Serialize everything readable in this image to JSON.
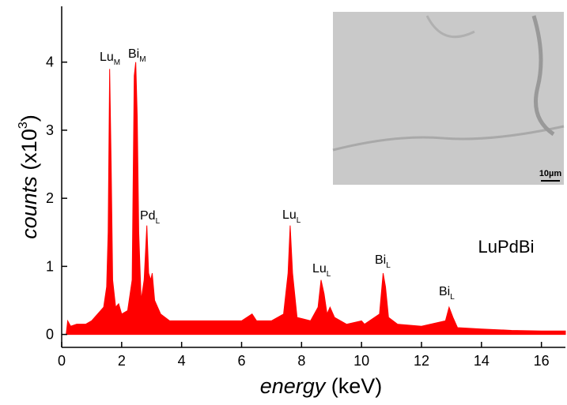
{
  "chart_data": {
    "type": "area",
    "x": [
      0.15,
      0.2,
      0.3,
      0.5,
      0.8,
      1.0,
      1.2,
      1.4,
      1.5,
      1.55,
      1.6,
      1.65,
      1.7,
      1.8,
      1.9,
      2.0,
      2.2,
      2.35,
      2.42,
      2.47,
      2.52,
      2.57,
      2.65,
      2.75,
      2.84,
      2.9,
      2.97,
      3.02,
      3.1,
      3.3,
      3.6,
      4,
      5,
      6,
      6.35,
      6.5,
      7,
      7.4,
      7.55,
      7.62,
      7.7,
      7.85,
      8.3,
      8.55,
      8.65,
      8.75,
      8.85,
      8.95,
      9.1,
      9.5,
      10,
      10.1,
      10.6,
      10.72,
      10.8,
      10.9,
      11.2,
      12,
      12.8,
      12.92,
      13.05,
      13.2,
      14,
      15,
      16,
      16.8
    ],
    "series": [
      {
        "color": "#ff0000",
        "values": [
          0,
          0.2,
          0.12,
          0.15,
          0.15,
          0.2,
          0.3,
          0.4,
          0.7,
          1.5,
          3.9,
          2.5,
          0.8,
          0.4,
          0.45,
          0.3,
          0.35,
          0.8,
          3.8,
          4.0,
          3.2,
          1.5,
          0.5,
          0.8,
          1.6,
          0.9,
          0.8,
          0.9,
          0.5,
          0.3,
          0.2,
          0.2,
          0.2,
          0.2,
          0.3,
          0.2,
          0.2,
          0.3,
          0.9,
          1.6,
          0.9,
          0.25,
          0.2,
          0.4,
          0.8,
          0.6,
          0.3,
          0.4,
          0.25,
          0.15,
          0.2,
          0.15,
          0.3,
          0.9,
          0.7,
          0.25,
          0.15,
          0.12,
          0.2,
          0.4,
          0.25,
          0.1,
          0.08,
          0.06,
          0.05,
          0.05
        ]
      }
    ],
    "xlim": [
      0,
      16.8
    ],
    "ylim": [
      -0.19,
      4.82
    ],
    "xticks": [
      0,
      2,
      4,
      6,
      8,
      10,
      12,
      14,
      16
    ],
    "yticks": [
      0,
      1,
      2,
      3,
      4
    ],
    "x_label": {
      "italic": "energy",
      "rest": " (keV)"
    },
    "y_label": {
      "italic": "counts",
      "rest": " (x10",
      "sup": "3",
      "end": ")"
    },
    "annotations": [
      {
        "text": "Lu",
        "sub": "M"
      },
      {
        "text": "Bi",
        "sub": "M"
      },
      {
        "text": "Pd",
        "sub": "L"
      },
      {
        "text": "Lu",
        "sub": "L"
      },
      {
        "text": "Lu",
        "sub": "L"
      },
      {
        "text": "Bi",
        "sub": "L"
      },
      {
        "text": "Bi",
        "sub": "L"
      }
    ],
    "sample_label": "LuPdBi",
    "inset_scale_bar": "10µm"
  }
}
